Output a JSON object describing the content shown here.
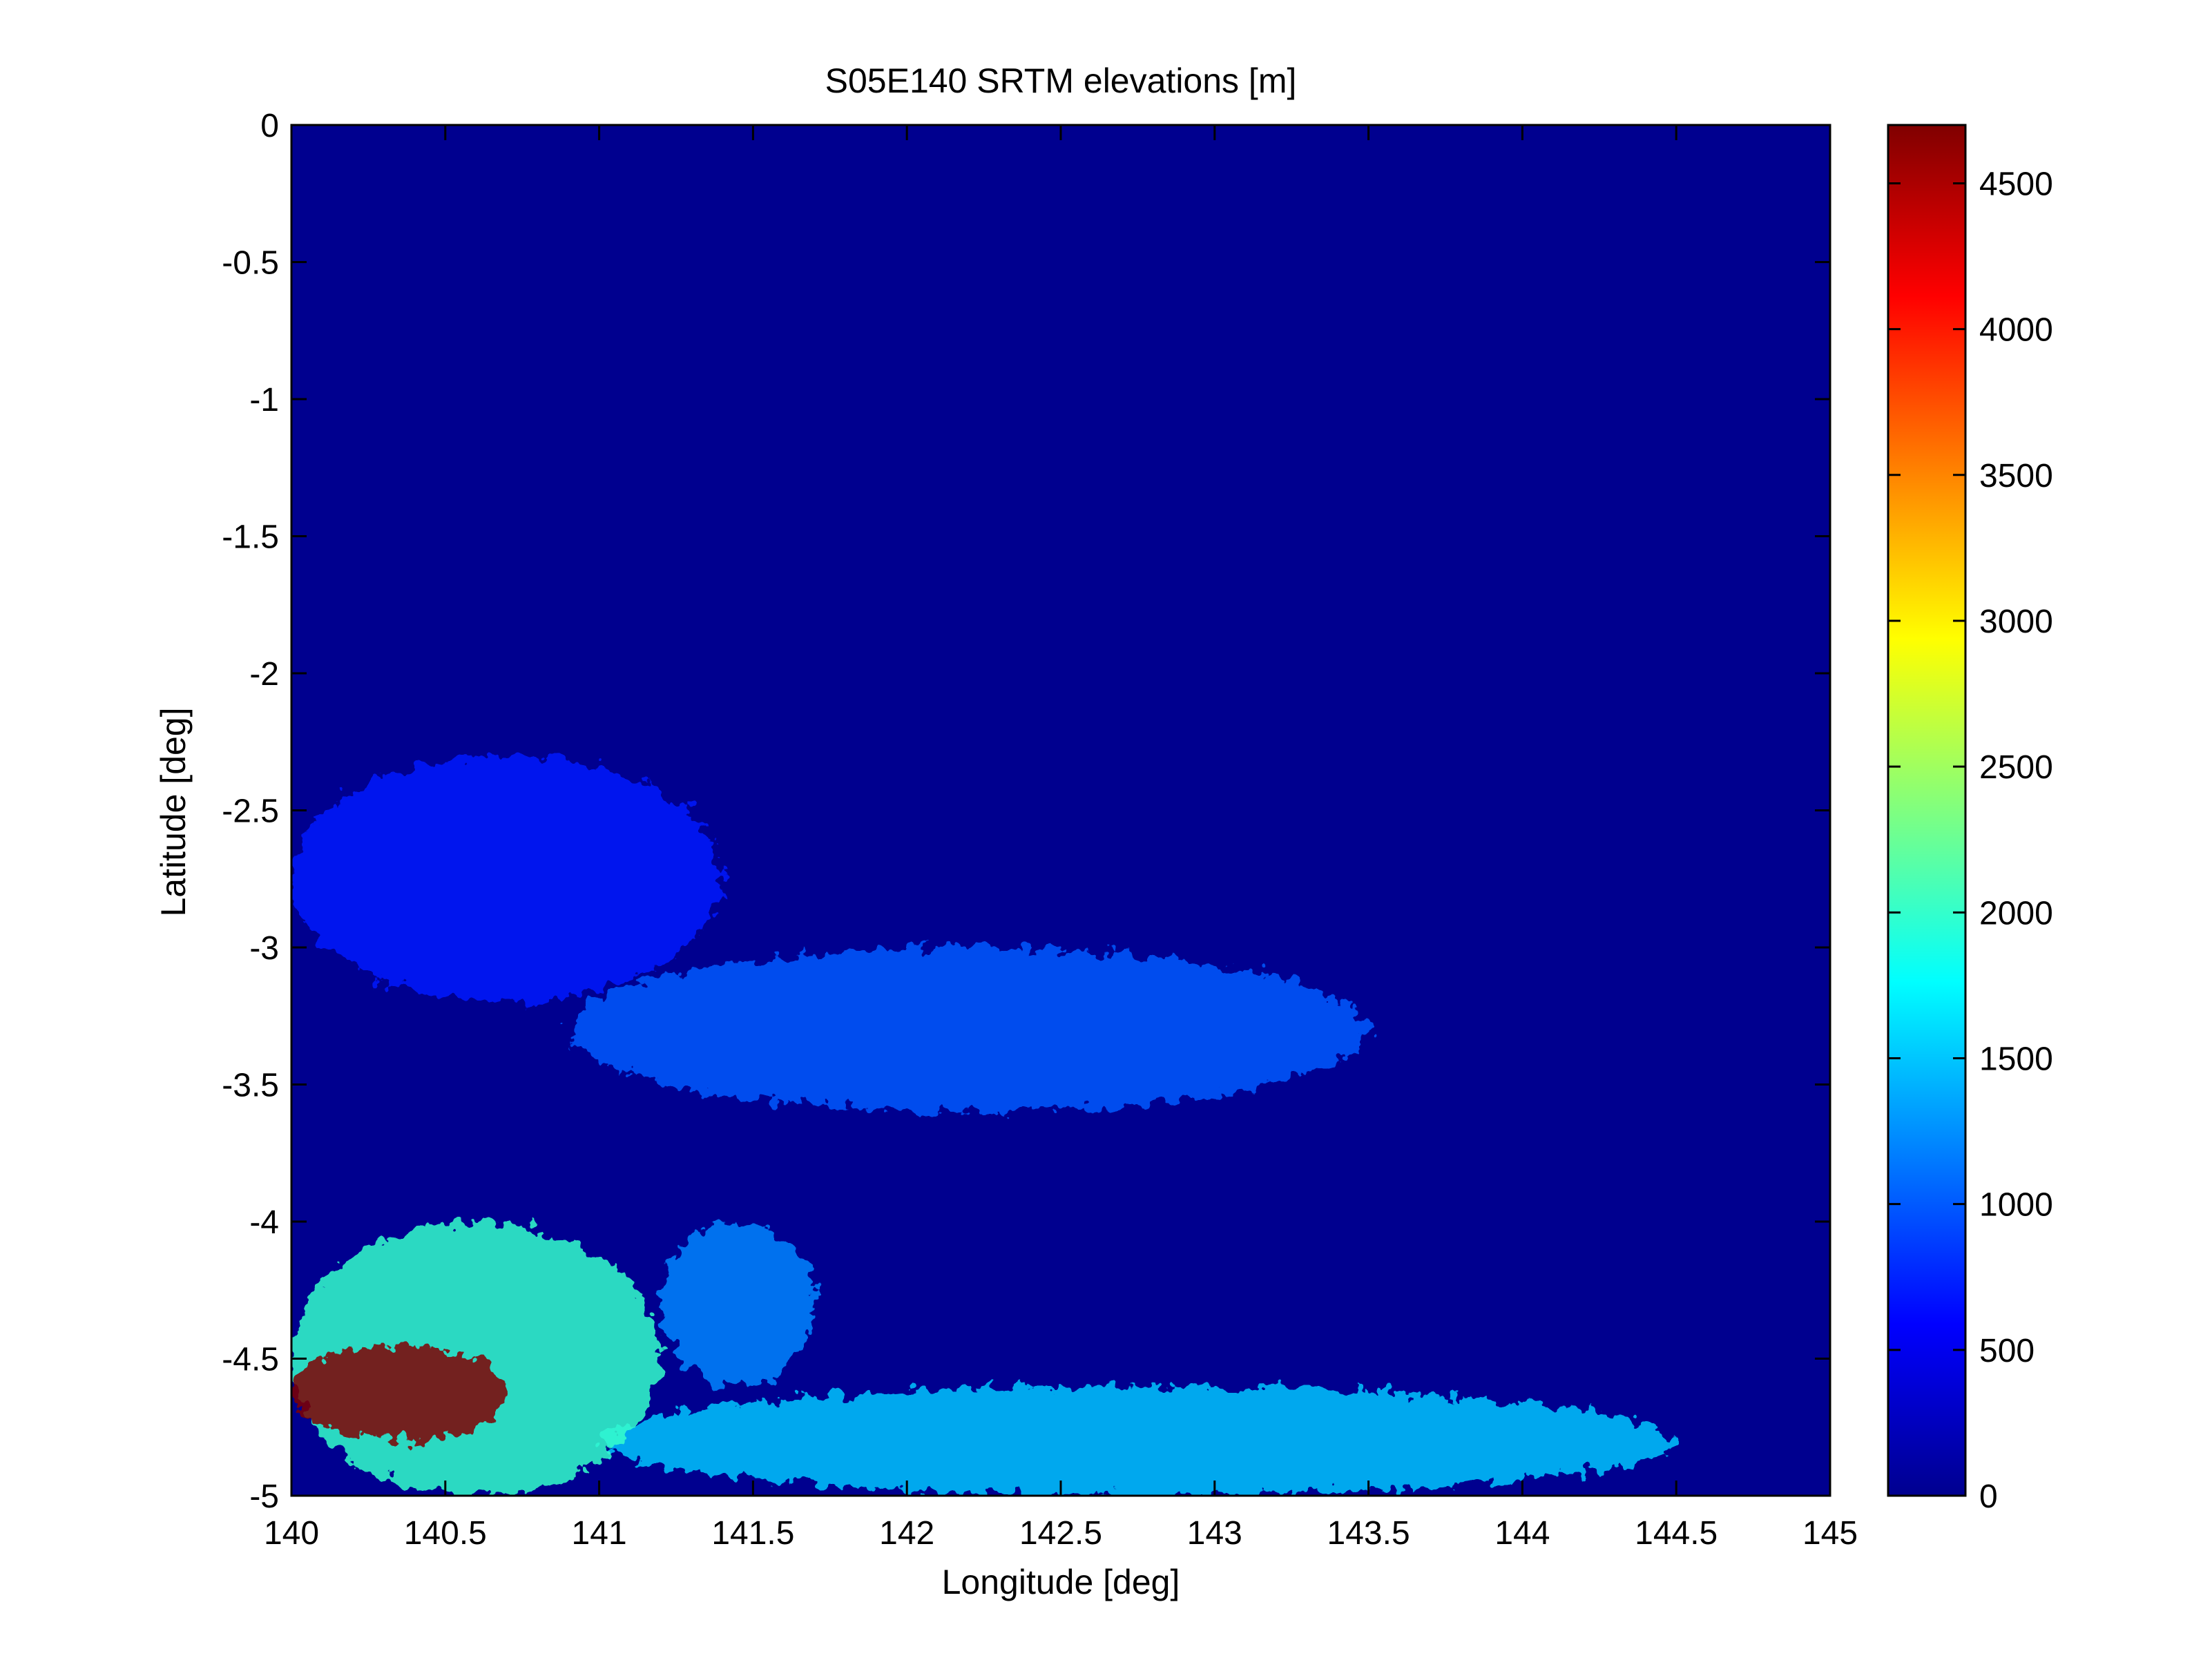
{
  "chart_data": {
    "type": "heatmap",
    "title": "S05E140 SRTM elevations [m]",
    "xlabel": "Longitude [deg]",
    "ylabel": "Latitude [deg]",
    "xlim": [
      140,
      145
    ],
    "ylim": [
      -5,
      0
    ],
    "x_ticks": [
      140,
      140.5,
      141,
      141.5,
      142,
      142.5,
      143,
      143.5,
      144,
      144.5,
      145
    ],
    "x_tick_labels": [
      "140",
      "140.5",
      "141",
      "141.5",
      "142",
      "142.5",
      "143",
      "143.5",
      "144",
      "144.5",
      "145"
    ],
    "y_ticks": [
      0,
      -0.5,
      -1,
      -1.5,
      -2,
      -2.5,
      -3,
      -3.5,
      -4,
      -4.5,
      -5
    ],
    "y_tick_labels": [
      "0",
      "-0.5",
      "-1",
      "-1.5",
      "-2",
      "-2.5",
      "-3",
      "-3.5",
      "-4",
      "-4.5",
      "-5"
    ],
    "colormap": "jet",
    "clim": [
      0,
      4700
    ],
    "colorbar": {
      "ticks": [
        0,
        500,
        1000,
        1500,
        2000,
        2500,
        3000,
        3500,
        4000,
        4500
      ],
      "tick_labels": [
        "0",
        "500",
        "1000",
        "1500",
        "2000",
        "2500",
        "3000",
        "3500",
        "4000",
        "4500"
      ],
      "placement": "right"
    },
    "features": [
      {
        "lon_range": [
          140.0,
          140.7
        ],
        "lat_range": [
          -4.8,
          -4.45
        ],
        "elevation_max": 4700
      },
      {
        "lon_range": [
          140.0,
          141.2
        ],
        "lat_range": [
          -5.0,
          -4.0
        ],
        "elevation_typical": 2000
      },
      {
        "lon_range": [
          141.0,
          144.5
        ],
        "lat_range": [
          -5.0,
          -4.6
        ],
        "elevation_typical": 1500
      },
      {
        "lon_range": [
          141.2,
          141.7
        ],
        "lat_range": [
          -4.6,
          -4.0
        ],
        "elevation_typical": 1200
      },
      {
        "lon_range": [
          140.9,
          143.5
        ],
        "lat_range": [
          -3.6,
          -3.0
        ],
        "elevation_typical": 1000
      },
      {
        "lon_range": [
          140.0,
          141.4
        ],
        "lat_range": [
          -3.2,
          -2.3
        ],
        "elevation_typical": 700
      }
    ],
    "grid": false
  },
  "colors": {
    "background": "#ffffff",
    "sea_level": "#00008f",
    "axes": "#000000"
  }
}
